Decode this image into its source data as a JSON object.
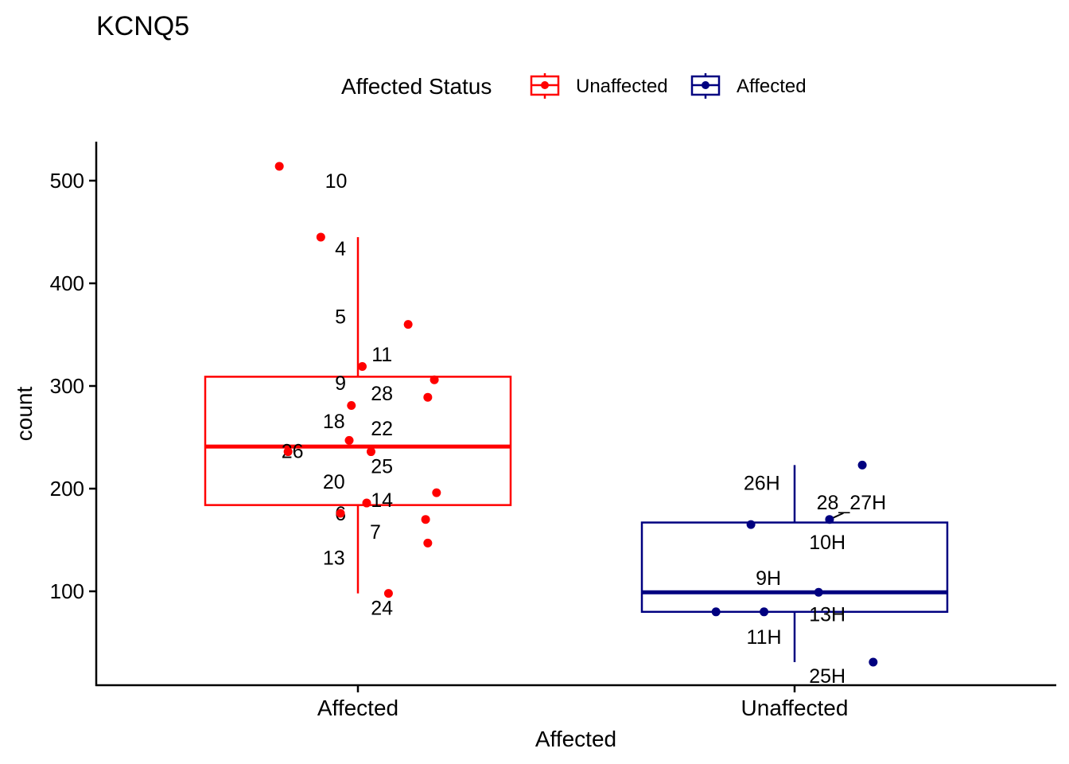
{
  "chart_data": {
    "type": "box",
    "title": "KCNQ5",
    "xlabel": "Affected",
    "ylabel": "count",
    "categories": [
      "Affected",
      "Unaffected"
    ],
    "yticks": [
      100,
      200,
      300,
      400,
      500
    ],
    "ylim": [
      10,
      537
    ],
    "legend": {
      "title": "Affected Status",
      "position": "top",
      "items": [
        {
          "label": "Unaffected",
          "color": "#FF0000"
        },
        {
          "label": "Affected",
          "color": "#000080"
        }
      ]
    },
    "boxes": [
      {
        "category": "Affected",
        "color": "#FF0000",
        "min": 98,
        "q1": 184,
        "median": 241,
        "q3": 309,
        "max": 445
      },
      {
        "category": "Unaffected",
        "color": "#000080",
        "min": 31,
        "q1": 80,
        "median": 99,
        "q3": 167,
        "max": 223
      }
    ],
    "points": [
      {
        "category": "Affected",
        "jitter": -0.18,
        "y": 514,
        "label": "10",
        "lx": -0.05,
        "ly": 500
      },
      {
        "category": "Affected",
        "jitter": -0.085,
        "y": 445,
        "label": "4",
        "lx": -0.04,
        "ly": 434
      },
      {
        "category": "Affected",
        "jitter": 0.115,
        "y": 360,
        "label": "5",
        "lx": -0.04,
        "ly": 368
      },
      {
        "category": "Affected",
        "jitter": 0.01,
        "y": 319,
        "label": "11",
        "lx": 0.055,
        "ly": 331
      },
      {
        "category": "Affected",
        "jitter": 0.175,
        "y": 306,
        "label": "9",
        "lx": -0.04,
        "ly": 303
      },
      {
        "category": "Affected",
        "jitter": 0.16,
        "y": 289,
        "label": "28",
        "lx": 0.055,
        "ly": 293
      },
      {
        "category": "Affected",
        "jitter": -0.015,
        "y": 281,
        "label": "18",
        "lx": -0.055,
        "ly": 266
      },
      {
        "category": "Affected",
        "jitter": -0.02,
        "y": 247,
        "label": "22",
        "lx": 0.055,
        "ly": 259
      },
      {
        "category": "Affected",
        "jitter": 0.03,
        "y": 236,
        "label": "25",
        "lx": 0.055,
        "ly": 222
      },
      {
        "category": "Affected",
        "jitter": -0.16,
        "y": 236,
        "label": "26",
        "lx": -0.15,
        "ly": 237
      },
      {
        "category": "Affected",
        "jitter": 0.18,
        "y": 196,
        "label": "20",
        "lx": -0.055,
        "ly": 207
      },
      {
        "category": "Affected",
        "jitter": 0.02,
        "y": 186,
        "label": "14",
        "lx": 0.055,
        "ly": 189
      },
      {
        "category": "Affected",
        "jitter": -0.04,
        "y": 176,
        "label": "6",
        "lx": -0.04,
        "ly": 176
      },
      {
        "category": "Affected",
        "jitter": 0.155,
        "y": 170,
        "label": "7",
        "lx": 0.04,
        "ly": 158
      },
      {
        "category": "Affected",
        "jitter": 0.16,
        "y": 147,
        "label": "13",
        "lx": -0.055,
        "ly": 133
      },
      {
        "category": "Affected",
        "jitter": 0.07,
        "y": 98,
        "label": "24",
        "lx": 0.055,
        "ly": 84
      },
      {
        "category": "Unaffected",
        "jitter": 0.155,
        "y": 223,
        "label": "26H",
        "lx": -0.075,
        "ly": 206
      },
      {
        "category": "Unaffected",
        "jitter": 0.08,
        "y": 170,
        "label": "28_27H",
        "lx": 0.13,
        "ly": 187
      },
      {
        "category": "Unaffected",
        "jitter": -0.1,
        "y": 165,
        "label": "10H",
        "lx": 0.075,
        "ly": 148
      },
      {
        "category": "Unaffected",
        "jitter": 0.055,
        "y": 99,
        "label": "9H",
        "lx": -0.06,
        "ly": 113
      },
      {
        "category": "Unaffected",
        "jitter": -0.18,
        "y": 80,
        "label": "13H",
        "lx": 0.075,
        "ly": 78
      },
      {
        "category": "Unaffected",
        "jitter": -0.07,
        "y": 80,
        "label": "11H",
        "lx": -0.07,
        "ly": 56
      },
      {
        "category": "Unaffected",
        "jitter": 0.18,
        "y": 31,
        "label": "25H",
        "lx": 0.075,
        "ly": 18
      }
    ]
  }
}
